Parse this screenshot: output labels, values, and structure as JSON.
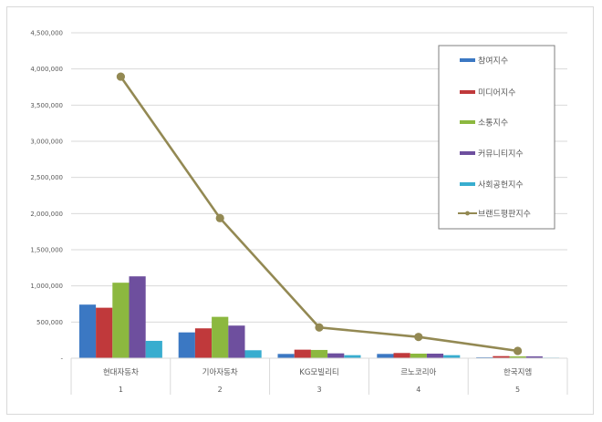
{
  "chart_data": {
    "type": "bar",
    "combo": "clustered bar + line",
    "title": "",
    "xlabel": "",
    "ylabel": "",
    "ylim": [
      0,
      4500000
    ],
    "yticks": [
      0,
      500000,
      1000000,
      1500000,
      2000000,
      2500000,
      3000000,
      3500000,
      4000000,
      4500000
    ],
    "ytick_labels": [
      "-",
      "500,000",
      "1,000,000",
      "1,500,000",
      "2,000,000",
      "2,500,000",
      "3,000,000",
      "3,500,000",
      "4,000,000",
      "4,500,000"
    ],
    "grid": true,
    "legend_position": "top-right inside",
    "categories": [
      "현대자동차",
      "기아자동차",
      "KG모빌리티",
      "르노코리아",
      "한국지엠"
    ],
    "category_ranks": [
      "1",
      "2",
      "3",
      "4",
      "5"
    ],
    "series": [
      {
        "name": "참여지수",
        "type": "bar",
        "color": "#3b78c3",
        "values": [
          741000,
          357000,
          59000,
          59000,
          12000
        ]
      },
      {
        "name": "미디어지수",
        "type": "bar",
        "color": "#c0393b",
        "values": [
          698000,
          413000,
          118000,
          72000,
          29000
        ]
      },
      {
        "name": "소통지수",
        "type": "bar",
        "color": "#8cb83f",
        "values": [
          1044000,
          572000,
          114000,
          63000,
          25000
        ]
      },
      {
        "name": "커뮤니티지수",
        "type": "bar",
        "color": "#6e4f9e",
        "values": [
          1132000,
          451000,
          67000,
          63000,
          25000
        ]
      },
      {
        "name": "사회공헌지수",
        "type": "bar",
        "color": "#38adcf",
        "values": [
          240000,
          110000,
          42000,
          42000,
          8000
        ]
      },
      {
        "name": "브랜드평판지수",
        "type": "line",
        "color": "#938953",
        "values": [
          3894000,
          1937000,
          425000,
          294000,
          101000
        ]
      }
    ]
  }
}
